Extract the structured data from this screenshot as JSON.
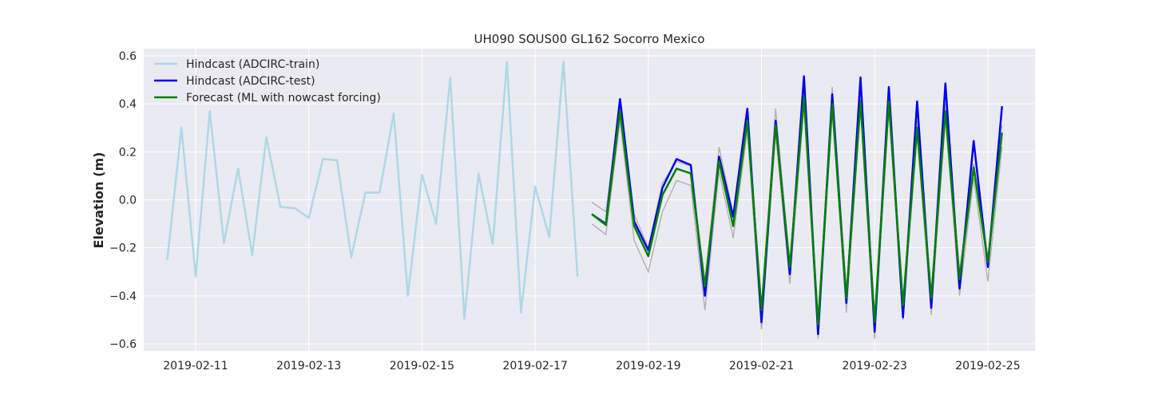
{
  "chart_data": {
    "type": "line",
    "title": "UH090 SOUS00 GL162 Socorro Mexico",
    "xlabel": "",
    "ylabel": "Elevation (m)",
    "ylim": [
      -0.63,
      0.63
    ],
    "xlim": [
      "2019-02-10T02:00",
      "2019-02-25T20:00"
    ],
    "grid": true,
    "legend_position": "top-left",
    "x_ticks": [
      "2019-02-11",
      "2019-02-13",
      "2019-02-15",
      "2019-02-17",
      "2019-02-19",
      "2019-02-21",
      "2019-02-23",
      "2019-02-25"
    ],
    "y_ticks": [
      0.6,
      0.4,
      0.2,
      0.0,
      -0.2,
      -0.4,
      -0.6
    ],
    "y_tick_labels": [
      "0.6",
      "0.4",
      "0.2",
      "0.0",
      "−0.2",
      "−0.4",
      "−0.6"
    ],
    "colors": {
      "background": "#eaeaf2",
      "grid": "#ffffff",
      "train": "#add8e6",
      "test": "#0000ee",
      "forecast": "#008000",
      "band": "#b0b0b0"
    },
    "series": [
      {
        "name": "Hindcast (ADCIRC-train)",
        "color": "#add8e6",
        "x": [
          "2019-02-10T12:00",
          "2019-02-10T18:00",
          "2019-02-11T00:00",
          "2019-02-11T06:00",
          "2019-02-11T12:00",
          "2019-02-11T18:00",
          "2019-02-12T00:00",
          "2019-02-12T06:00",
          "2019-02-12T12:00",
          "2019-02-12T18:00",
          "2019-02-13T00:00",
          "2019-02-13T06:00",
          "2019-02-13T12:00",
          "2019-02-13T18:00",
          "2019-02-14T00:00",
          "2019-02-14T06:00",
          "2019-02-14T12:00",
          "2019-02-14T18:00",
          "2019-02-15T00:00",
          "2019-02-15T06:00",
          "2019-02-15T12:00",
          "2019-02-15T18:00",
          "2019-02-16T00:00",
          "2019-02-16T06:00",
          "2019-02-16T12:00",
          "2019-02-16T18:00",
          "2019-02-17T00:00",
          "2019-02-17T06:00",
          "2019-02-17T12:00",
          "2019-02-17T18:00"
        ],
        "y": [
          -0.25,
          0.3,
          -0.32,
          0.37,
          -0.18,
          0.13,
          -0.23,
          0.26,
          -0.03,
          -0.035,
          -0.075,
          0.17,
          0.165,
          -0.24,
          0.03,
          0.03,
          0.36,
          -0.4,
          0.105,
          -0.1,
          0.51,
          -0.495,
          0.11,
          -0.185,
          0.575,
          -0.47,
          0.055,
          -0.155,
          0.575,
          -0.32
        ]
      },
      {
        "name": "Hindcast (ADCIRC-test)",
        "color": "#0000ee",
        "x": [
          "2019-02-18T00:00",
          "2019-02-18T06:00",
          "2019-02-18T12:00",
          "2019-02-18T18:00",
          "2019-02-19T00:00",
          "2019-02-19T06:00",
          "2019-02-19T12:00",
          "2019-02-19T18:00",
          "2019-02-20T00:00",
          "2019-02-20T06:00",
          "2019-02-20T12:00",
          "2019-02-20T18:00",
          "2019-02-21T00:00",
          "2019-02-21T06:00",
          "2019-02-21T12:00",
          "2019-02-21T18:00",
          "2019-02-22T00:00",
          "2019-02-22T06:00",
          "2019-02-22T12:00",
          "2019-02-22T18:00",
          "2019-02-23T00:00",
          "2019-02-23T06:00",
          "2019-02-23T12:00",
          "2019-02-23T18:00",
          "2019-02-24T00:00",
          "2019-02-24T06:00",
          "2019-02-24T12:00",
          "2019-02-24T18:00",
          "2019-02-25T00:00",
          "2019-02-25T06:00"
        ],
        "y": [
          -0.06,
          -0.1,
          0.42,
          -0.09,
          -0.21,
          0.05,
          0.17,
          0.145,
          -0.4,
          0.18,
          -0.07,
          0.38,
          -0.51,
          0.33,
          -0.31,
          0.515,
          -0.56,
          0.44,
          -0.43,
          0.51,
          -0.55,
          0.47,
          -0.49,
          0.41,
          -0.45,
          0.485,
          -0.37,
          0.245,
          -0.28,
          0.39
        ]
      },
      {
        "name": "Forecast (ML with nowcast forcing)",
        "color": "#008000",
        "x": [
          "2019-02-18T00:00",
          "2019-02-18T06:00",
          "2019-02-18T12:00",
          "2019-02-18T18:00",
          "2019-02-19T00:00",
          "2019-02-19T06:00",
          "2019-02-19T12:00",
          "2019-02-19T18:00",
          "2019-02-20T00:00",
          "2019-02-20T06:00",
          "2019-02-20T12:00",
          "2019-02-20T18:00",
          "2019-02-21T00:00",
          "2019-02-21T06:00",
          "2019-02-21T12:00",
          "2019-02-21T18:00",
          "2019-02-22T00:00",
          "2019-02-22T06:00",
          "2019-02-22T12:00",
          "2019-02-22T18:00",
          "2019-02-23T00:00",
          "2019-02-23T06:00",
          "2019-02-23T12:00",
          "2019-02-23T18:00",
          "2019-02-24T00:00",
          "2019-02-24T06:00",
          "2019-02-24T12:00",
          "2019-02-24T18:00",
          "2019-02-25T00:00",
          "2019-02-25T06:00"
        ],
        "y": [
          -0.06,
          -0.105,
          0.37,
          -0.11,
          -0.235,
          0.02,
          0.13,
          0.11,
          -0.36,
          0.16,
          -0.11,
          0.33,
          -0.46,
          0.31,
          -0.28,
          0.43,
          -0.52,
          0.4,
          -0.41,
          0.41,
          -0.51,
          0.41,
          -0.44,
          0.3,
          -0.41,
          0.37,
          -0.33,
          0.135,
          -0.26,
          0.28
        ]
      }
    ],
    "uncertainty_band": {
      "color": "#b0b0b0",
      "x": [
        "2019-02-18T00:00",
        "2019-02-18T06:00",
        "2019-02-18T12:00",
        "2019-02-18T18:00",
        "2019-02-19T00:00",
        "2019-02-19T06:00",
        "2019-02-19T12:00",
        "2019-02-19T18:00",
        "2019-02-20T00:00",
        "2019-02-20T06:00",
        "2019-02-20T12:00",
        "2019-02-20T18:00",
        "2019-02-21T00:00",
        "2019-02-21T06:00",
        "2019-02-21T12:00",
        "2019-02-21T18:00",
        "2019-02-22T00:00",
        "2019-02-22T06:00",
        "2019-02-22T12:00",
        "2019-02-22T18:00",
        "2019-02-23T00:00",
        "2019-02-23T06:00",
        "2019-02-23T12:00",
        "2019-02-23T18:00",
        "2019-02-24T00:00",
        "2019-02-24T06:00",
        "2019-02-24T12:00",
        "2019-02-24T18:00",
        "2019-02-25T00:00",
        "2019-02-25T06:00"
      ],
      "upper": [
        -0.01,
        -0.05,
        0.4,
        -0.06,
        -0.2,
        0.07,
        0.16,
        0.14,
        -0.34,
        0.22,
        -0.06,
        0.35,
        -0.46,
        0.38,
        -0.27,
        0.45,
        -0.52,
        0.47,
        -0.38,
        0.44,
        -0.51,
        0.44,
        -0.44,
        0.33,
        -0.41,
        0.4,
        -0.3,
        0.15,
        -0.24,
        0.31
      ],
      "lower": [
        -0.1,
        -0.145,
        0.33,
        -0.17,
        -0.3,
        -0.05,
        0.08,
        0.06,
        -0.46,
        0.12,
        -0.16,
        0.29,
        -0.54,
        0.28,
        -0.35,
        0.39,
        -0.58,
        0.37,
        -0.47,
        0.38,
        -0.58,
        0.38,
        -0.5,
        0.27,
        -0.48,
        0.34,
        -0.4,
        0.09,
        -0.34,
        0.22
      ]
    }
  }
}
